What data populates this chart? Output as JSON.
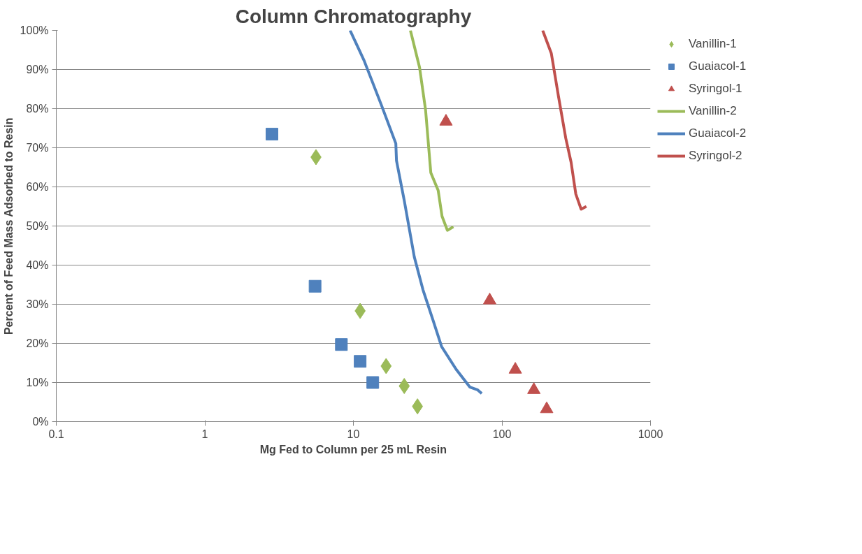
{
  "chart_data": {
    "type": "scatter",
    "title": "Column Chromatography",
    "xlabel": "Mg Fed to Column per 25 mL Resin",
    "ylabel": "Percent of Feed Mass Adsorbed to Resin",
    "log": "x",
    "xlim": [
      0.1,
      1000
    ],
    "xticks": [
      0.1,
      1,
      10,
      100,
      1000
    ],
    "ylim": [
      0,
      100
    ],
    "yticks": [
      {
        "value": 0,
        "label": "0%"
      },
      {
        "value": 10,
        "label": "10%"
      },
      {
        "value": 20,
        "label": "20%"
      },
      {
        "value": 30,
        "label": "30%"
      },
      {
        "value": 40,
        "label": "40%"
      },
      {
        "value": 50,
        "label": "50%"
      },
      {
        "value": 60,
        "label": "60%"
      },
      {
        "value": 70,
        "label": "70%"
      },
      {
        "value": 80,
        "label": "80%"
      },
      {
        "value": 90,
        "label": "90%"
      },
      {
        "value": 100,
        "label": "100%"
      }
    ],
    "grid": "y",
    "legend": "right",
    "series": [
      {
        "name": "Vanillin-1",
        "marker": "diamond",
        "color": "#9bbb59",
        "x": [
          5.6,
          11.1,
          16.6,
          22.0,
          27.0
        ],
        "values": [
          67.6,
          28.3,
          14.2,
          9.1,
          3.9
        ]
      },
      {
        "name": "Guaiacol-1",
        "marker": "square",
        "color": "#4f81bd",
        "x": [
          2.83,
          5.52,
          8.3,
          11.1,
          13.5
        ],
        "values": [
          73.5,
          34.6,
          19.7,
          15.4,
          10.0
        ]
      },
      {
        "name": "Syringol-1",
        "marker": "triangle",
        "color": "#c0504d",
        "x": [
          42,
          82.7,
          123,
          164,
          200
        ],
        "values": [
          76.7,
          31.0,
          13.3,
          8.1,
          3.2
        ]
      },
      {
        "name": "Vanillin-2",
        "type": "line",
        "color": "#9bbb59",
        "x": [
          24.2,
          27.9,
          30.6,
          33.2,
          37.2,
          39.5,
          42.9,
          47.1
        ],
        "values": [
          100,
          90.5,
          79.7,
          63.6,
          59.1,
          52.5,
          48.9,
          49.8
        ]
      },
      {
        "name": "Guaiacol-2",
        "type": "line",
        "color": "#4f81bd",
        "x": [
          9.5,
          11.8,
          15.4,
          19.3,
          19.5,
          22.0,
          25.7,
          29.4,
          34.3,
          39.2,
          49.1,
          60.9,
          68.7,
          73.1
        ],
        "values": [
          100,
          92.3,
          81.0,
          71.1,
          66.7,
          56.5,
          42.1,
          33.7,
          26.0,
          19.2,
          13.4,
          8.8,
          8.1,
          7.2
        ]
      },
      {
        "name": "Syringol-2",
        "type": "line",
        "color": "#c0504d",
        "x": [
          188,
          215,
          240,
          269,
          292,
          314,
          341,
          370
        ],
        "values": [
          100,
          94.1,
          83.2,
          72.4,
          66.3,
          58.2,
          54.3,
          55.0
        ]
      }
    ]
  }
}
